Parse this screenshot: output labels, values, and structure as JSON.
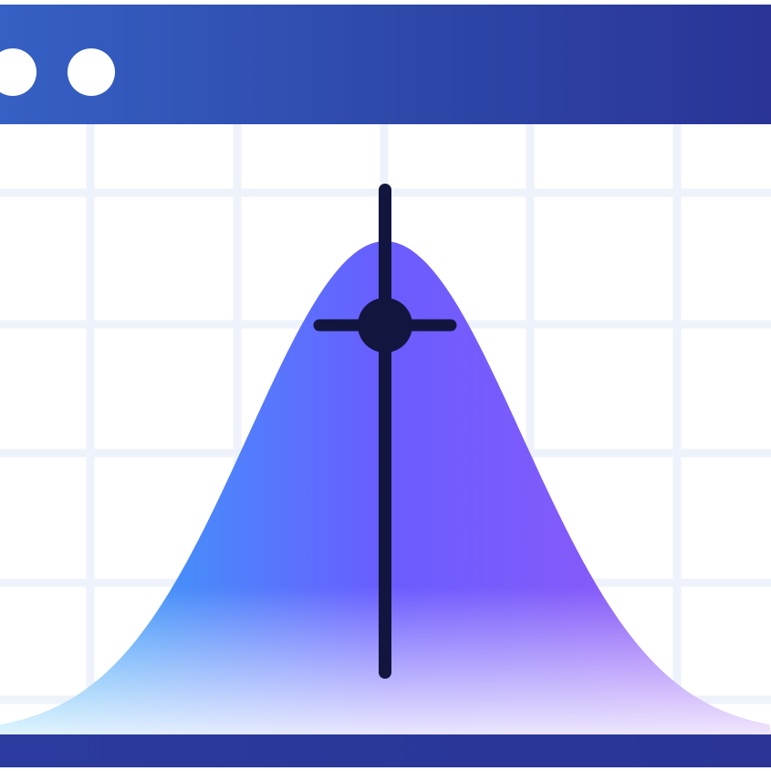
{
  "window": {
    "controls": [
      {
        "name": "window-control-dot-1"
      },
      {
        "name": "window-control-dot-2"
      }
    ]
  },
  "colors": {
    "titlebar_start": "#3660c4",
    "titlebar_end": "#2a3497",
    "curve_left": "#29b6f6",
    "curve_mid": "#6a5cff",
    "curve_right": "#9b59f5",
    "marker": "#12163f",
    "grid": "#eef2fb",
    "bottombar": "#2b3a9e"
  },
  "chart_data": {
    "type": "area",
    "distribution": "normal",
    "mean": 0,
    "std": 1,
    "xlim": [
      -2.8,
      2.8
    ],
    "peak_marker": {
      "x": 0
    },
    "grid": true
  }
}
